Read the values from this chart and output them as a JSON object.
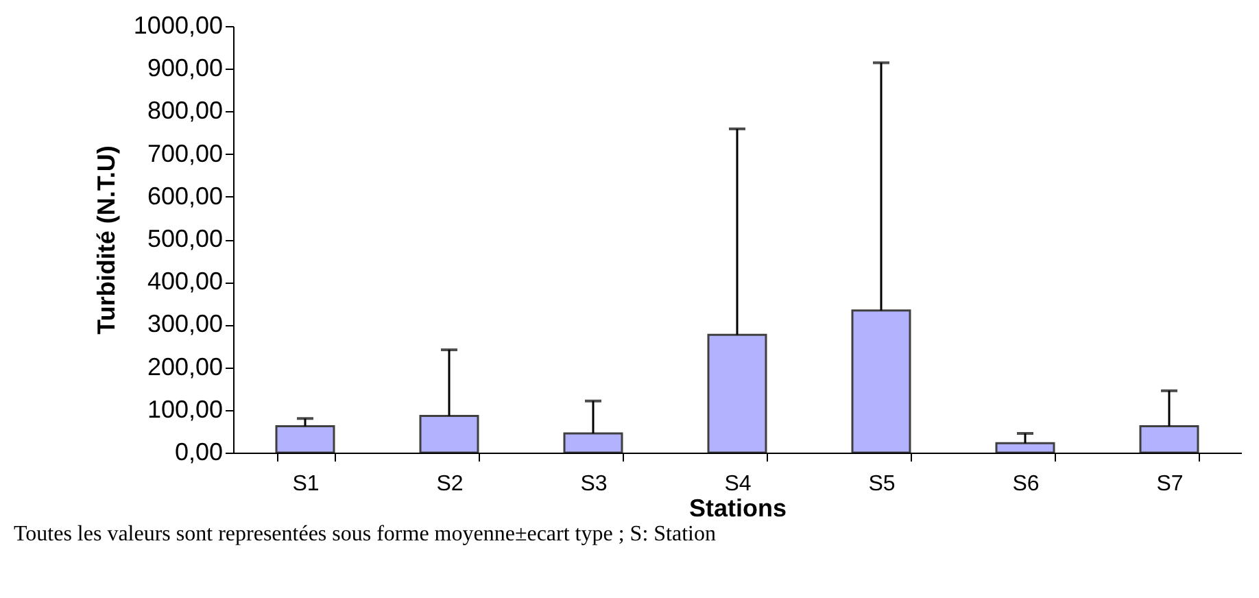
{
  "chart_data": {
    "type": "bar",
    "xlabel": "Stations",
    "ylabel": "Turbidité (N.T.U)",
    "categories": [
      "S1",
      "S2",
      "S3",
      "S4",
      "S5",
      "S6",
      "S7"
    ],
    "values": [
      62,
      86,
      45,
      276,
      333,
      22,
      62
    ],
    "errors": [
      [
        62,
        80
      ],
      [
        86,
        241
      ],
      [
        45,
        121
      ],
      [
        276,
        759
      ],
      [
        333,
        914
      ],
      [
        22,
        45
      ],
      [
        62,
        145
      ]
    ],
    "color": "#9999ff",
    "ylim": [
      0,
      1000
    ],
    "yticks": [
      {
        "value": 0,
        "label": "0,00"
      },
      {
        "value": 100,
        "label": "100,00"
      },
      {
        "value": 200,
        "label": "200,00"
      },
      {
        "value": 300,
        "label": "300,00"
      },
      {
        "value": 400,
        "label": "400,00"
      },
      {
        "value": 500,
        "label": "500,00"
      },
      {
        "value": 600,
        "label": "600,00"
      },
      {
        "value": 700,
        "label": "700,00"
      },
      {
        "value": 800,
        "label": "800,00"
      },
      {
        "value": 900,
        "label": "900,00"
      },
      {
        "value": 1000,
        "label": "1000,00"
      }
    ],
    "grid": false,
    "annotations": [
      "Toutes les valeurs sont representées sous forme moyenne±ecart type ; S: Station"
    ]
  }
}
